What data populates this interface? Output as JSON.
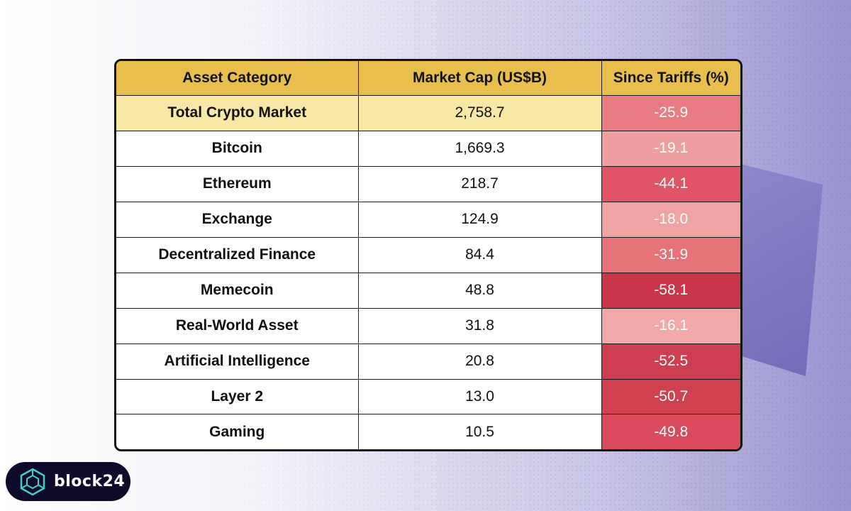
{
  "chart_data": {
    "type": "table",
    "columns": [
      "Asset Category",
      "Market Cap (US$B)",
      "Since Tariffs (%)"
    ],
    "rows": [
      {
        "category": "Total Crypto Market",
        "market_cap": "2,758.7",
        "since_tariffs": "-25.9",
        "color": "#e97b82",
        "highlight": true
      },
      {
        "category": "Bitcoin",
        "market_cap": "1,669.3",
        "since_tariffs": "-19.1",
        "color": "#ef9fa0",
        "highlight": false
      },
      {
        "category": "Ethereum",
        "market_cap": "218.7",
        "since_tariffs": "-44.1",
        "color": "#e05565",
        "highlight": false
      },
      {
        "category": "Exchange",
        "market_cap": "124.9",
        "since_tariffs": "-18.0",
        "color": "#f0a3a3",
        "highlight": false
      },
      {
        "category": "Decentralized Finance",
        "market_cap": "84.4",
        "since_tariffs": "-31.9",
        "color": "#e7727a",
        "highlight": false
      },
      {
        "category": "Memecoin",
        "market_cap": "48.8",
        "since_tariffs": "-58.1",
        "color": "#c93549",
        "highlight": false
      },
      {
        "category": "Real-World Asset",
        "market_cap": "31.8",
        "since_tariffs": "-16.1",
        "color": "#f0a8a8",
        "highlight": false
      },
      {
        "category": "Artificial Intelligence",
        "market_cap": "20.8",
        "since_tariffs": "-52.5",
        "color": "#cd3e51",
        "highlight": false
      },
      {
        "category": "Layer 2",
        "market_cap": "13.0",
        "since_tariffs": "-50.7",
        "color": "#d0414f",
        "highlight": false
      },
      {
        "category": "Gaming",
        "market_cap": "10.5",
        "since_tariffs": "-49.8",
        "color": "#d84a5c",
        "highlight": false
      }
    ],
    "header_color": "#e8be4c",
    "highlight_color": "#f9e7a5"
  },
  "brand": {
    "name": "block24",
    "logo_icon": "cube-icon",
    "accent": "#3fd0c6"
  }
}
